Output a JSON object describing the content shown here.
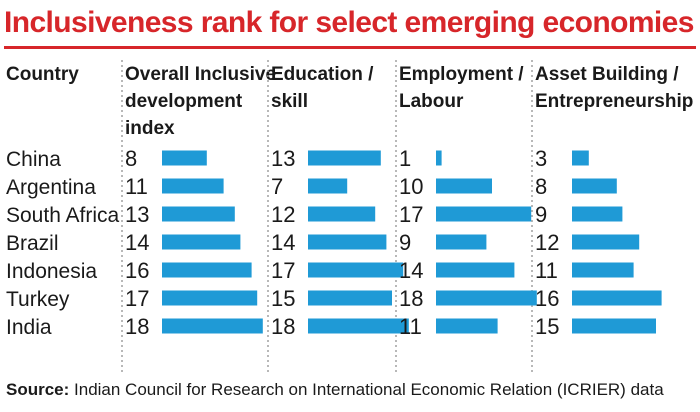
{
  "title": "Inclusiveness rank for select emerging economies",
  "source": {
    "label": "Source:",
    "text": " Indian Council for Research on International Economic Relation (ICRIER) data"
  },
  "colors": {
    "title": "#d7262a",
    "bar": "#1f9ad6"
  },
  "chart_data": {
    "type": "table",
    "row_header": "Country",
    "columns": [
      {
        "name": "Overall Inclusive development index",
        "header_lines": [
          "Overall Inclusive",
          "development",
          "index"
        ]
      },
      {
        "name": "Education / skill",
        "header_lines": [
          "Education /",
          "skill"
        ]
      },
      {
        "name": "Employment / Labour",
        "header_lines": [
          "Employment /",
          "Labour"
        ]
      },
      {
        "name": "Asset Building / Entrepreneurship",
        "header_lines": [
          "Asset Building /",
          "Entrepreneurship"
        ]
      }
    ],
    "rows": [
      {
        "country": "China",
        "values": [
          8,
          13,
          1,
          3
        ]
      },
      {
        "country": "Argentina",
        "values": [
          11,
          7,
          10,
          8
        ]
      },
      {
        "country": "South Africa",
        "values": [
          13,
          12,
          17,
          9
        ]
      },
      {
        "country": "Brazil",
        "values": [
          14,
          14,
          9,
          12
        ]
      },
      {
        "country": "Indonesia",
        "values": [
          16,
          17,
          14,
          11
        ]
      },
      {
        "country": "Turkey",
        "values": [
          17,
          15,
          18,
          16
        ]
      },
      {
        "country": "India",
        "values": [
          18,
          18,
          11,
          15
        ]
      }
    ]
  }
}
